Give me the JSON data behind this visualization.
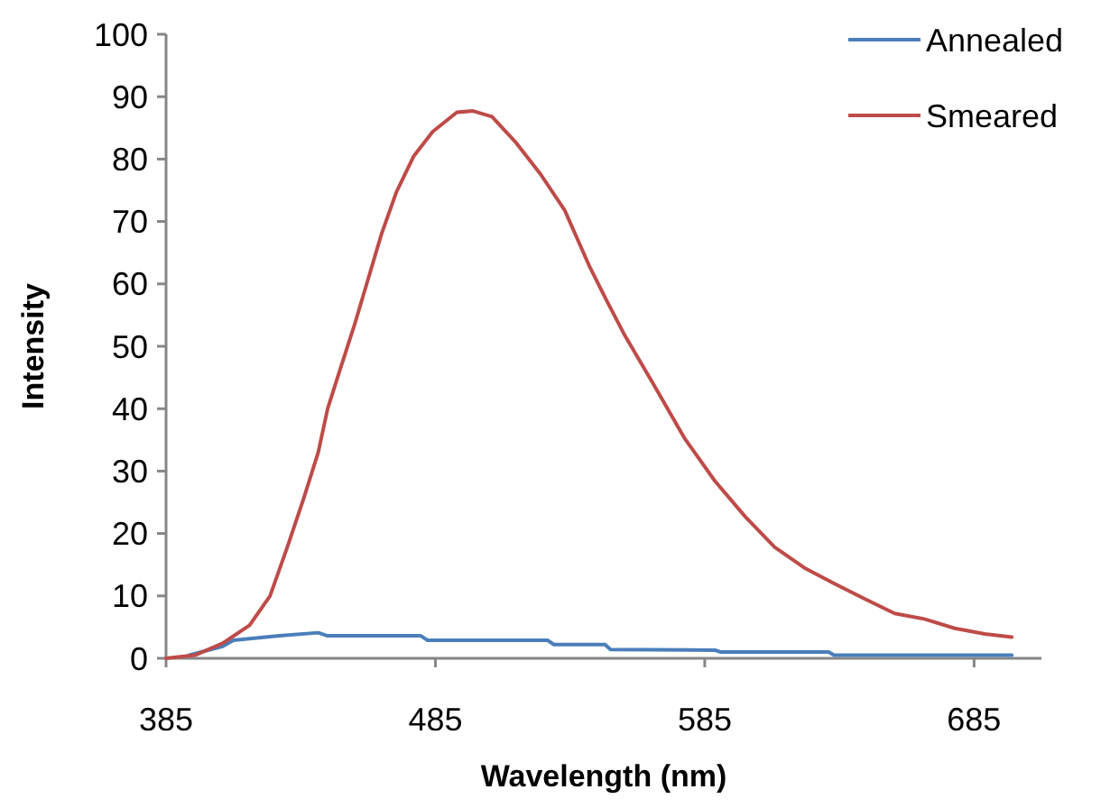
{
  "chart_data": {
    "type": "line",
    "xlabel": "Wavelength (nm)",
    "ylabel": "Intensity",
    "xlim": [
      385,
      710
    ],
    "xticks": [
      385,
      485,
      585,
      685
    ],
    "ylim": [
      0,
      100
    ],
    "yticks": [
      0,
      10,
      20,
      30,
      40,
      50,
      60,
      70,
      80,
      90,
      100
    ],
    "grid": false,
    "legend": "top right",
    "marker": "none",
    "line_style": "solid",
    "series": [
      {
        "name": "Annealed",
        "color": "#4a7ebb",
        "x": [
          393.6,
          406,
          410,
          427,
          441.5,
          445,
          479.6,
          482,
          526.6,
          529,
          548,
          550,
          588.8,
          591,
          631,
          633,
          699
        ],
        "values": [
          0.5,
          1.9,
          2.9,
          3.6,
          4.1,
          3.6,
          3.6,
          2.9,
          2.9,
          2.2,
          2.2,
          1.4,
          1.3,
          1.0,
          1.0,
          0.5,
          0.5
        ]
      },
      {
        "name": "Smeared",
        "color": "#be4b48",
        "x": [
          385,
          395.7,
          406,
          416,
          423.6,
          430,
          436,
          441.5,
          445,
          450,
          455,
          459.5,
          465,
          470.5,
          477,
          484,
          493,
          499,
          506,
          515,
          524,
          533,
          542,
          548.5,
          555,
          566,
          577.6,
          588.8,
          600,
          611,
          622,
          633,
          644,
          655.5,
          666.5,
          677.8,
          689,
          699
        ],
        "values": [
          0,
          0.5,
          2.4,
          5.3,
          10,
          17.8,
          25.5,
          33,
          40,
          46.8,
          53.5,
          60,
          68,
          74.7,
          80.5,
          84.4,
          87.5,
          87.7,
          86.8,
          82.6,
          77.6,
          71.8,
          63,
          57.4,
          52,
          43.9,
          35.2,
          28.4,
          22.7,
          17.8,
          14.5,
          12,
          9.6,
          7.2,
          6.3,
          4.8,
          3.9,
          3.4
        ]
      }
    ]
  }
}
